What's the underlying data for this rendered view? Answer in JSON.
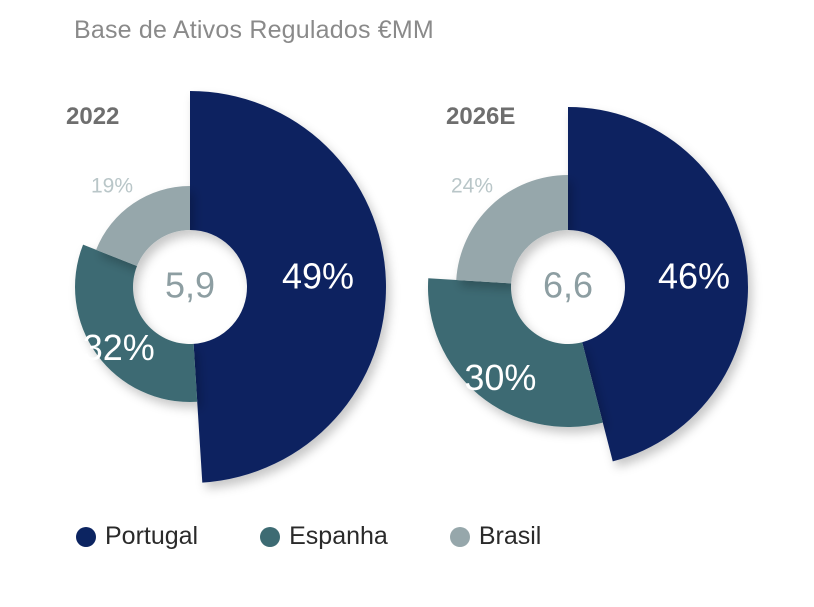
{
  "title": "Base de Ativos Regulados €MM",
  "colors": {
    "portugal": "#0c2461",
    "espanha": "#3d6b73",
    "brasil": "#96a7ab",
    "center_text": "#8d9ea2",
    "year_text": "#6e6e6e",
    "brasil_label": "#b9c6c8",
    "inner_label": "#ffffff"
  },
  "chart_data": [
    {
      "type": "pie",
      "variant": "variable-radius donut",
      "year": "2022",
      "total": "5,9",
      "categories": [
        "Portugal",
        "Espanha",
        "Brasil"
      ],
      "values": [
        49,
        32,
        19
      ],
      "labels": [
        "49%",
        "32%",
        "19%"
      ]
    },
    {
      "type": "pie",
      "variant": "variable-radius donut",
      "year": "2026E",
      "total": "6,6",
      "categories": [
        "Portugal",
        "Espanha",
        "Brasil"
      ],
      "values": [
        46,
        30,
        24
      ],
      "labels": [
        "46%",
        "30%",
        "24%"
      ]
    }
  ],
  "legend": [
    {
      "label": "Portugal",
      "color_key": "portugal"
    },
    {
      "label": "Espanha",
      "color_key": "espanha"
    },
    {
      "label": "Brasil",
      "color_key": "brasil"
    }
  ]
}
